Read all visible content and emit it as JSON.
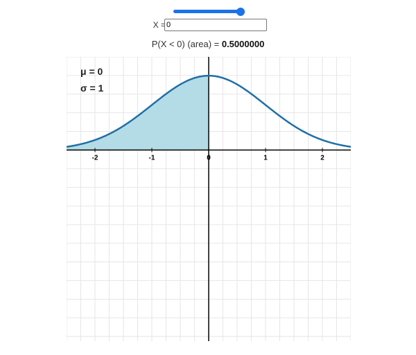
{
  "slider": {
    "value": 0,
    "min": -4,
    "max": 0
  },
  "x_field": {
    "label": "X =",
    "value": "0"
  },
  "probability": {
    "prefix": "P(X < 0) (area) = ",
    "value": "0.5000000"
  },
  "params": {
    "mu": "μ = 0",
    "sigma": "σ = 1"
  },
  "colors": {
    "accent": "#1a73e8",
    "curve": "#1f6fa6",
    "shade": "#b4dce6",
    "grid": "#e6e6e6",
    "axis": "#000000"
  },
  "chart_data": {
    "type": "area",
    "mu": 0,
    "sigma": 1,
    "shade_upper": 0,
    "xlim": [
      -2.5,
      2.5
    ],
    "ylim": [
      -1.025,
      0.5
    ],
    "x_ticks": [
      -2,
      -1,
      0,
      1,
      2
    ],
    "x_tick_labels": [
      "-2",
      "-1",
      "0",
      "1",
      "2"
    ],
    "grid": true
  }
}
